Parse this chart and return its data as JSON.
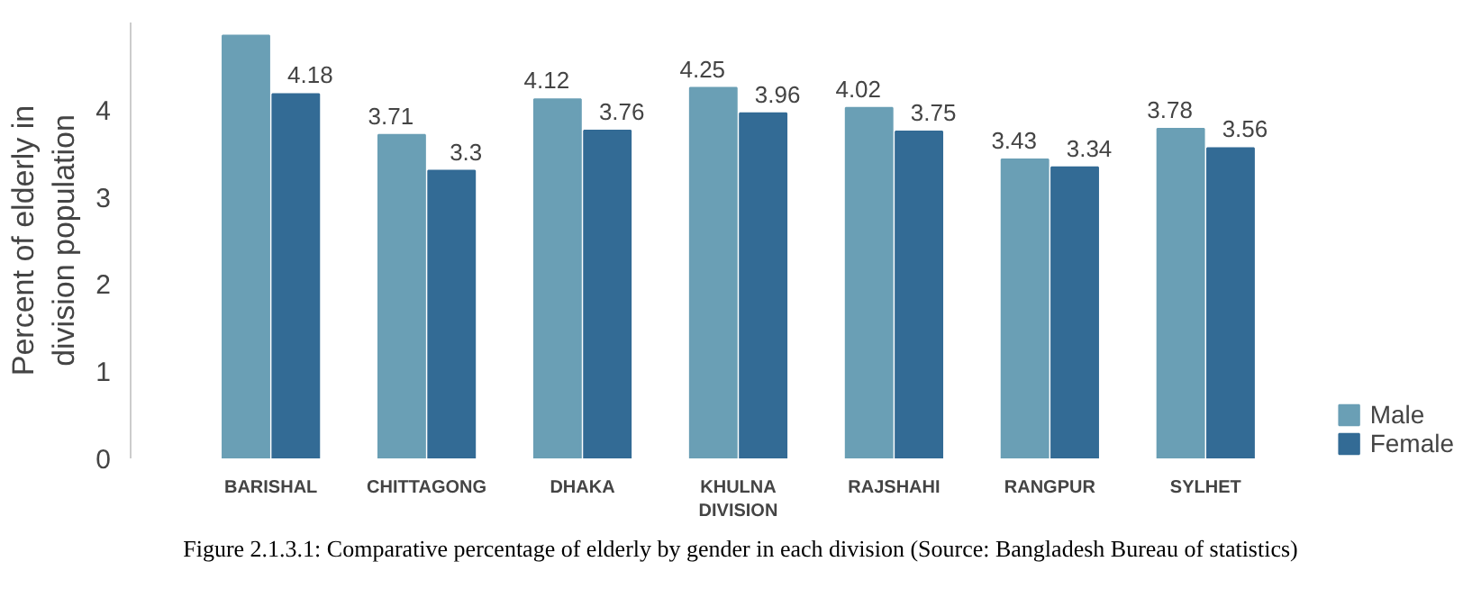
{
  "chart_data": {
    "type": "bar",
    "ylabel": "Percent of elderly in division population",
    "categories": [
      "BARISHAL",
      "CHITTAGONG",
      "DHAKA",
      "KHULNA DIVISION",
      "RAJSHAHI",
      "RANGPUR",
      "SYLHET"
    ],
    "series": [
      {
        "name": "Male",
        "color": "#6a9fb5",
        "values": [
          4.85,
          3.71,
          4.12,
          4.25,
          4.02,
          3.43,
          3.78
        ],
        "value_labels": [
          null,
          "3.71",
          "4.12",
          "4.25",
          "4.02",
          "3.43",
          "3.78"
        ]
      },
      {
        "name": "Female",
        "color": "#336b95",
        "values": [
          4.18,
          3.3,
          3.76,
          3.96,
          3.75,
          3.34,
          3.56
        ],
        "value_labels": [
          "4.18",
          "3.3",
          "3.76",
          "3.96",
          "3.75",
          "3.34",
          "3.56"
        ]
      }
    ],
    "ylim": [
      0,
      5
    ],
    "yticks": [
      0,
      1,
      2,
      3,
      4
    ],
    "grid": false,
    "legend": "bottom right",
    "annotations": [
      "Figure 2.1.3.1:   Comparative percentage of elderly by gender in each division (Source: Bangladesh Bureau of statistics)"
    ]
  }
}
